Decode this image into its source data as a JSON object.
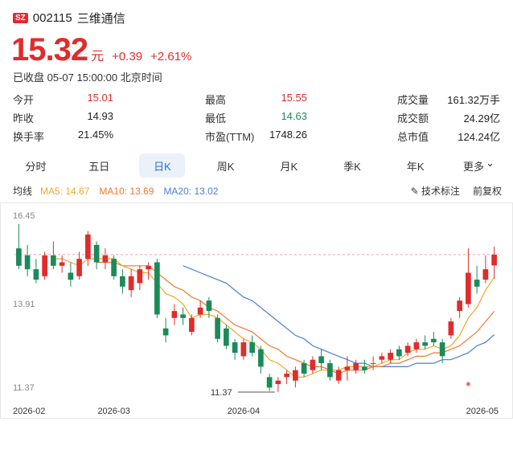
{
  "header": {
    "market": "SZ",
    "code": "002115",
    "name": "三维通信"
  },
  "quote": {
    "price": "15.32",
    "unit": "元",
    "change": "+0.39",
    "change_pct": "+2.61%",
    "status": "已收盘 05-07 15:00:00 北京时间"
  },
  "stats": [
    [
      {
        "label": "今开",
        "value": "15.01",
        "tone": "up"
      },
      {
        "label": "最高",
        "value": "15.55",
        "tone": "up"
      },
      {
        "label": "成交量",
        "value": "161.32万手",
        "tone": "neu"
      }
    ],
    [
      {
        "label": "昨收",
        "value": "14.93",
        "tone": "neu"
      },
      {
        "label": "最低",
        "value": "14.63",
        "tone": "dn"
      },
      {
        "label": "成交额",
        "value": "24.29亿",
        "tone": "neu"
      }
    ],
    [
      {
        "label": "换手率",
        "value": "21.45%",
        "tone": "neu"
      },
      {
        "label": "市盈(TTM)",
        "value": "1748.26",
        "tone": "neu"
      },
      {
        "label": "总市值",
        "value": "124.24亿",
        "tone": "neu"
      }
    ]
  ],
  "tabs": [
    "分时",
    "五日",
    "日K",
    "周K",
    "月K",
    "季K",
    "年K",
    "更多"
  ],
  "active_tab": "日K",
  "ma_bar": {
    "label": "均线",
    "ma5": "MA5: 14.67",
    "ma10": "MA10: 13.69",
    "ma20": "MA20: 13.02",
    "tech": "技术标注",
    "adjust": "前复权"
  },
  "colors": {
    "up": "#e02c2c",
    "down": "#1a8a5a",
    "ma5": "#f2a72a",
    "ma10": "#f07830",
    "ma20": "#4a7fd6"
  },
  "chart_data": {
    "type": "candlestick",
    "y_ticks": [
      "16.45",
      "13.91",
      "11.37"
    ],
    "ylim": [
      11.37,
      16.45
    ],
    "x_ticks": [
      {
        "label": "2026-02",
        "index": 0
      },
      {
        "label": "2026-03",
        "index": 11
      },
      {
        "label": "2026-04",
        "index": 26
      },
      {
        "label": "2026-05",
        "index": 40
      }
    ],
    "low_annotation": "11.37",
    "last_close": 15.32,
    "candles": [
      [
        15.5,
        15.0,
        16.2,
        14.9
      ],
      [
        15.3,
        14.9,
        15.6,
        14.7
      ],
      [
        14.9,
        14.6,
        15.2,
        14.5
      ],
      [
        14.7,
        15.3,
        15.4,
        14.6
      ],
      [
        15.3,
        15.0,
        15.7,
        14.9
      ],
      [
        15.0,
        15.1,
        15.3,
        14.8
      ],
      [
        14.8,
        14.6,
        15.1,
        14.4
      ],
      [
        14.7,
        15.2,
        15.4,
        14.6
      ],
      [
        15.2,
        15.9,
        16.0,
        15.0
      ],
      [
        15.6,
        15.1,
        15.7,
        14.9
      ],
      [
        15.1,
        15.3,
        15.5,
        14.9
      ],
      [
        15.2,
        14.7,
        15.3,
        14.6
      ],
      [
        14.7,
        14.4,
        14.9,
        14.2
      ],
      [
        14.3,
        14.7,
        14.9,
        14.1
      ],
      [
        14.5,
        14.9,
        15.0,
        14.3
      ],
      [
        14.9,
        15.0,
        15.1,
        14.6
      ],
      [
        15.1,
        13.6,
        15.2,
        13.5
      ],
      [
        13.2,
        13.0,
        13.5,
        12.8
      ],
      [
        13.5,
        13.7,
        13.9,
        13.3
      ],
      [
        13.6,
        13.5,
        13.8,
        13.3
      ],
      [
        13.1,
        13.5,
        13.6,
        13.0
      ],
      [
        13.6,
        13.8,
        14.0,
        13.5
      ],
      [
        14.0,
        13.7,
        14.1,
        13.5
      ],
      [
        13.5,
        12.9,
        13.6,
        12.8
      ],
      [
        13.2,
        12.7,
        13.3,
        12.6
      ],
      [
        12.8,
        12.5,
        12.9,
        12.3
      ],
      [
        12.4,
        12.8,
        12.9,
        12.3
      ],
      [
        12.8,
        12.5,
        13.0,
        12.4
      ],
      [
        12.6,
        12.1,
        12.7,
        11.9
      ],
      [
        11.8,
        11.5,
        11.9,
        11.4
      ],
      [
        11.6,
        11.7,
        11.8,
        11.37
      ],
      [
        11.8,
        11.9,
        12.0,
        11.6
      ],
      [
        11.7,
        12.0,
        12.1,
        11.5
      ],
      [
        12.2,
        11.9,
        12.3,
        11.8
      ],
      [
        12.0,
        12.3,
        12.4,
        11.9
      ],
      [
        12.4,
        12.2,
        12.6,
        12.0
      ],
      [
        12.2,
        11.8,
        12.3,
        11.7
      ],
      [
        11.7,
        12.0,
        12.1,
        11.6
      ],
      [
        12.0,
        12.1,
        12.4,
        11.7
      ],
      [
        12.0,
        12.2,
        12.3,
        11.9
      ],
      [
        12.1,
        12.0,
        12.3,
        11.9
      ],
      [
        12.2,
        12.2,
        12.4,
        12.0
      ],
      [
        12.3,
        12.4,
        12.5,
        12.2
      ],
      [
        12.3,
        12.5,
        12.6,
        12.2
      ],
      [
        12.6,
        12.4,
        12.7,
        12.3
      ],
      [
        12.5,
        12.7,
        12.8,
        12.4
      ],
      [
        12.6,
        12.8,
        12.9,
        12.5
      ],
      [
        12.8,
        12.7,
        13.0,
        12.6
      ],
      [
        12.9,
        12.8,
        13.1,
        12.7
      ],
      [
        12.8,
        12.4,
        12.9,
        12.2
      ],
      [
        13.0,
        13.4,
        13.5,
        12.9
      ],
      [
        13.7,
        14.0,
        14.1,
        13.5
      ],
      [
        13.9,
        14.8,
        15.5,
        13.8
      ],
      [
        14.6,
        14.4,
        15.0,
        14.2
      ],
      [
        14.6,
        14.9,
        15.3,
        14.5
      ],
      [
        15.01,
        15.32,
        15.55,
        14.63
      ]
    ],
    "ma5": [
      null,
      null,
      null,
      null,
      15.2,
      15.2,
      15.1,
      15.0,
      15.2,
      15.2,
      15.2,
      15.2,
      15.0,
      14.9,
      14.8,
      14.8,
      14.5,
      14.2,
      14.1,
      13.9,
      13.5,
      13.6,
      13.6,
      13.5,
      13.3,
      13.1,
      12.9,
      12.8,
      12.6,
      12.3,
      12.2,
      12.0,
      11.8,
      11.8,
      11.9,
      12.0,
      12.0,
      12.0,
      12.1,
      12.1,
      12.1,
      12.1,
      12.2,
      12.3,
      12.3,
      12.5,
      12.6,
      12.6,
      12.7,
      12.6,
      12.7,
      13.0,
      13.5,
      13.8,
      14.3,
      14.67
    ],
    "ma10": [
      null,
      null,
      null,
      null,
      null,
      null,
      null,
      null,
      null,
      15.1,
      15.1,
      15.1,
      15.0,
      15.0,
      15.0,
      15.0,
      14.8,
      14.6,
      14.4,
      14.3,
      14.1,
      14.0,
      13.8,
      13.7,
      13.5,
      13.3,
      13.2,
      13.1,
      12.9,
      12.7,
      12.6,
      12.4,
      12.3,
      12.2,
      12.1,
      12.1,
      12.0,
      11.9,
      12.0,
      12.0,
      12.0,
      12.1,
      12.1,
      12.2,
      12.2,
      12.3,
      12.4,
      12.4,
      12.5,
      12.5,
      12.6,
      12.7,
      12.9,
      13.1,
      13.4,
      13.69
    ],
    "ma20": [
      null,
      null,
      null,
      null,
      null,
      null,
      null,
      null,
      null,
      null,
      null,
      null,
      null,
      null,
      null,
      null,
      null,
      null,
      null,
      15.0,
      14.9,
      14.8,
      14.7,
      14.6,
      14.5,
      14.3,
      14.1,
      14.0,
      13.8,
      13.6,
      13.4,
      13.2,
      13.0,
      12.9,
      12.7,
      12.6,
      12.5,
      12.4,
      12.3,
      12.2,
      12.2,
      12.1,
      12.1,
      12.1,
      12.1,
      12.1,
      12.2,
      12.2,
      12.2,
      12.3,
      12.3,
      12.4,
      12.5,
      12.7,
      12.8,
      13.02
    ]
  }
}
